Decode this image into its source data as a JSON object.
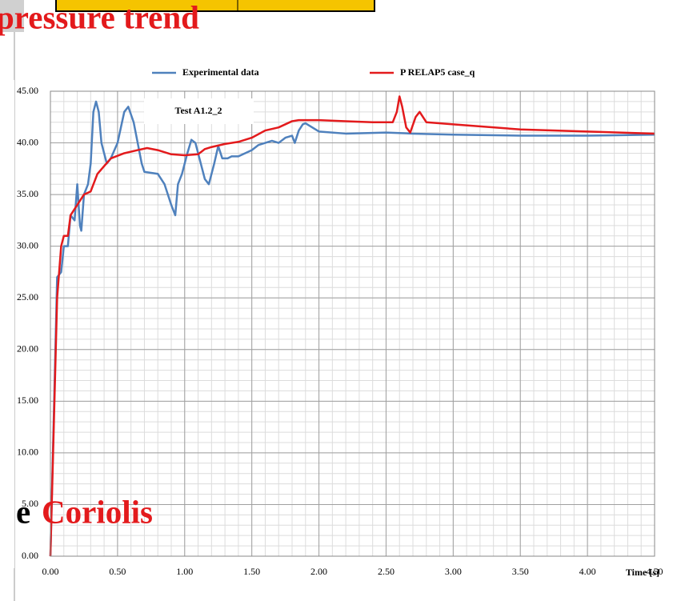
{
  "chart_data": {
    "type": "line",
    "title": "pressure trend",
    "caption": [
      "e",
      "Coriolis"
    ],
    "annotation": "Test A1.2_2",
    "xlabel": "Time [s]",
    "xlim": [
      0,
      4.5
    ],
    "xticks": [
      {
        "value": 0,
        "label": "0.00"
      },
      {
        "value": 0.5,
        "label": "0.50"
      },
      {
        "value": 1,
        "label": "1.00"
      },
      {
        "value": 1.5,
        "label": "1.50"
      },
      {
        "value": 2,
        "label": "2.00"
      },
      {
        "value": 2.5,
        "label": "2.50"
      },
      {
        "value": 3,
        "label": "3.00"
      },
      {
        "value": 3.5,
        "label": "3.50"
      },
      {
        "value": 4,
        "label": "4.00"
      },
      {
        "value": 4.5,
        "label": "4.50"
      }
    ],
    "ylim": [
      0,
      45
    ],
    "yticks": [
      {
        "value": 0,
        "label": "0.00"
      },
      {
        "value": 5,
        "label": "5.00"
      },
      {
        "value": 10,
        "label": "10.00"
      },
      {
        "value": 15,
        "label": "15.00"
      },
      {
        "value": 20,
        "label": "20.00"
      },
      {
        "value": 25,
        "label": "25.00"
      },
      {
        "value": 30,
        "label": "30.00"
      },
      {
        "value": 35,
        "label": "35.00"
      },
      {
        "value": 40,
        "label": "40.00"
      },
      {
        "value": 45,
        "label": "45.00"
      }
    ],
    "grid": true,
    "xminor": 0.1,
    "yminor": 1,
    "series": [
      {
        "name": "Experimental data",
        "color": "#4f81bd",
        "x": [
          0,
          0.05,
          0.08,
          0.1,
          0.13,
          0.15,
          0.18,
          0.2,
          0.22,
          0.23,
          0.25,
          0.28,
          0.3,
          0.32,
          0.34,
          0.36,
          0.38,
          0.42,
          0.45,
          0.5,
          0.55,
          0.58,
          0.62,
          0.65,
          0.68,
          0.7,
          0.8,
          0.85,
          0.9,
          0.93,
          0.95,
          0.98,
          1.02,
          1.05,
          1.08,
          1.1,
          1.15,
          1.18,
          1.22,
          1.25,
          1.28,
          1.32,
          1.35,
          1.4,
          1.45,
          1.5,
          1.55,
          1.6,
          1.65,
          1.7,
          1.75,
          1.8,
          1.82,
          1.85,
          1.88,
          1.9,
          2.0,
          2.2,
          2.5,
          2.7,
          3.0,
          3.5,
          4.0,
          4.5
        ],
        "values": [
          0,
          27,
          27.5,
          30,
          30,
          33,
          32.5,
          36,
          32,
          31.5,
          35,
          36,
          38,
          43,
          44,
          43,
          40,
          38,
          38.5,
          40,
          43,
          43.5,
          42,
          40,
          38,
          37.2,
          37,
          36,
          34,
          33,
          36,
          37,
          39,
          40.3,
          40,
          39,
          36.5,
          36,
          38,
          39.7,
          38.5,
          38.5,
          38.7,
          38.7,
          39,
          39.3,
          39.8,
          40,
          40.2,
          40,
          40.5,
          40.7,
          40,
          41.2,
          41.8,
          41.9,
          41.1,
          40.9,
          41,
          40.9,
          40.8,
          40.7,
          40.7,
          40.8
        ]
      },
      {
        "name": "P RELAP5 case_q",
        "color": "#e31a1c",
        "x": [
          0,
          0.05,
          0.08,
          0.1,
          0.13,
          0.15,
          0.2,
          0.25,
          0.3,
          0.35,
          0.45,
          0.55,
          0.65,
          0.72,
          0.8,
          0.9,
          1.0,
          1.1,
          1.15,
          1.2,
          1.3,
          1.4,
          1.5,
          1.6,
          1.7,
          1.75,
          1.8,
          1.85,
          2.0,
          2.2,
          2.4,
          2.55,
          2.58,
          2.6,
          2.62,
          2.65,
          2.68,
          2.72,
          2.75,
          2.8,
          3.0,
          3.5,
          4.0,
          4.5
        ],
        "values": [
          0,
          25,
          30,
          31,
          31,
          33,
          34,
          35,
          35.3,
          37,
          38.5,
          39,
          39.3,
          39.5,
          39.3,
          38.9,
          38.8,
          38.9,
          39.4,
          39.6,
          39.9,
          40.1,
          40.5,
          41.2,
          41.5,
          41.8,
          42.1,
          42.2,
          42.2,
          42.1,
          42,
          42,
          43,
          44.5,
          43.5,
          41.5,
          41,
          42.5,
          43,
          42,
          41.8,
          41.3,
          41.1,
          40.9
        ]
      }
    ]
  }
}
